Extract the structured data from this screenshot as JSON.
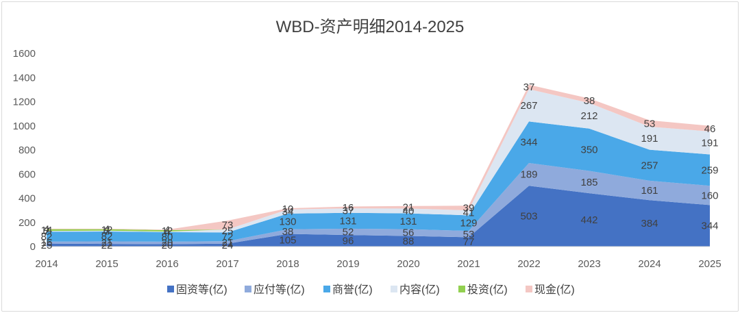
{
  "chart_data": {
    "type": "area",
    "stacked": true,
    "title": "WBD-资产明细2014-2025",
    "xlabel": "",
    "ylabel": "",
    "categories": [
      "2014",
      "2015",
      "2016",
      "2017",
      "2018",
      "2019",
      "2020",
      "2021",
      "2022",
      "2023",
      "2024",
      "2025"
    ],
    "ylim": [
      0,
      1600
    ],
    "yticks": [
      0,
      200,
      400,
      600,
      800,
      1000,
      1200,
      1400,
      1600
    ],
    "grid": false,
    "legend_position": "bottom",
    "series": [
      {
        "name": "固资等(亿)",
        "color": "#4472c4",
        "values": [
          25,
          22,
          20,
          24,
          105,
          96,
          88,
          77,
          503,
          442,
          384,
          344
        ]
      },
      {
        "name": "应付等(亿)",
        "color": "#8faadc",
        "values": [
          16,
          21,
          20,
          21,
          38,
          52,
          56,
          53,
          189,
          185,
          161,
          160
        ]
      },
      {
        "name": "商誉(亿)",
        "color": "#4aa8e8",
        "values": [
          82,
          82,
          80,
          72,
          130,
          131,
          131,
          129,
          344,
          350,
          257,
          259
        ]
      },
      {
        "name": "内容(亿)",
        "color": "#dce6f2",
        "values": [
          7,
          7,
          4,
          25,
          34,
          37,
          40,
          41,
          267,
          212,
          191,
          191
        ]
      },
      {
        "name": "投资(亿)",
        "color": "#92d050",
        "values": [
          14,
          12,
          12,
          0,
          0,
          0,
          0,
          0,
          0,
          0,
          0,
          0
        ]
      },
      {
        "name": "现金(亿)",
        "color": "#f4c7c3",
        "values": [
          4,
          4,
          4,
          73,
          10,
          16,
          21,
          39,
          37,
          38,
          53,
          46
        ]
      }
    ],
    "data_labels": [
      [
        "25",
        "22",
        "20",
        "24",
        "105",
        "96",
        "88",
        "77",
        "503",
        "442",
        "384",
        "344"
      ],
      [
        "16",
        "21",
        "20",
        "21",
        "38",
        "52",
        "56",
        "53",
        "189",
        "185",
        "161",
        "160"
      ],
      [
        "82",
        "82",
        "80",
        "72",
        "130",
        "131",
        "131",
        "129",
        "344",
        "350",
        "257",
        "259"
      ],
      [
        "7",
        "7",
        "4",
        "25",
        "34",
        "37",
        "40",
        "41",
        "267",
        "212",
        "191",
        "191"
      ],
      [
        "14",
        "12",
        "12",
        "",
        "",
        "",
        "",
        "",
        "",
        "",
        "",
        ""
      ],
      [
        "4",
        "4",
        "4",
        "73",
        "10",
        "16",
        "21",
        "39",
        "37",
        "38",
        "53",
        "46"
      ]
    ]
  }
}
